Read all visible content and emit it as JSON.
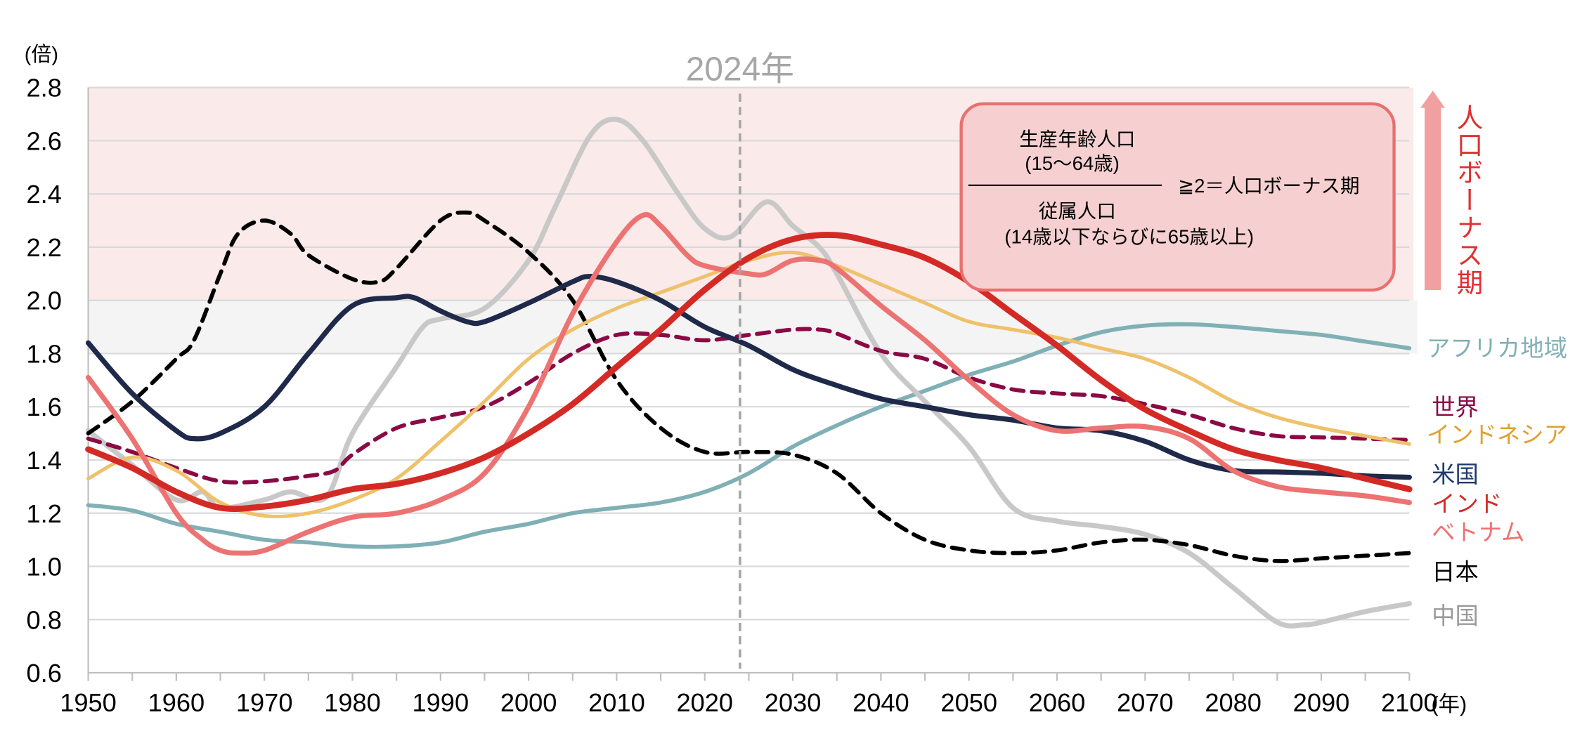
{
  "chart_data": {
    "type": "line",
    "ylabel": "(倍)",
    "xlabel_unit": "(年)",
    "xlim": [
      1950,
      2100
    ],
    "ylim": [
      0.6,
      2.8
    ],
    "x_ticks": [
      1950,
      1960,
      1970,
      1980,
      1990,
      2000,
      2010,
      2020,
      2030,
      2040,
      2050,
      2060,
      2070,
      2080,
      2090,
      2100
    ],
    "y_ticks": [
      "0.6",
      "0.8",
      "1.0",
      "1.2",
      "1.4",
      "1.6",
      "1.8",
      "2.0",
      "2.2",
      "2.4",
      "2.6",
      "2.8"
    ],
    "grid": true,
    "bonus_band": {
      "from": 2.0,
      "to": 2.8,
      "color": "#fbeaea"
    },
    "gray_band": {
      "from": 1.8,
      "to": 2.0,
      "color": "#f4f4f4"
    },
    "marker_year": {
      "year": 2024,
      "label": "2024年"
    },
    "annotation": {
      "numerator": "生産年齢人口",
      "numerator_sub": "(15〜64歳)",
      "denominator": "従属人口",
      "denominator_sub": "(14歳以下ならびに65歳以上)",
      "condition": "≧2＝人口ボーナス期"
    },
    "arrow_label": "人口ボーナス期",
    "series": [
      {
        "name": "アフリカ地域",
        "color": "#7fb0b5",
        "label_color": "#7fb0b5",
        "dashed": false,
        "width": 4,
        "x": [
          1950,
          1955,
          1960,
          1965,
          1970,
          1975,
          1980,
          1985,
          1990,
          1995,
          2000,
          2005,
          2010,
          2015,
          2020,
          2025,
          2030,
          2035,
          2040,
          2045,
          2050,
          2055,
          2060,
          2065,
          2070,
          2075,
          2080,
          2085,
          2090,
          2095,
          2100
        ],
        "y": [
          1.23,
          1.21,
          1.16,
          1.13,
          1.1,
          1.09,
          1.075,
          1.075,
          1.09,
          1.13,
          1.16,
          1.2,
          1.22,
          1.24,
          1.28,
          1.35,
          1.45,
          1.53,
          1.6,
          1.66,
          1.72,
          1.77,
          1.83,
          1.88,
          1.905,
          1.91,
          1.9,
          1.885,
          1.87,
          1.845,
          1.82
        ]
      },
      {
        "name": "中国",
        "color": "#c8c8c8",
        "label_color": "#9a9a9a",
        "dashed": false,
        "width": 5,
        "x": [
          1950,
          1955,
          1960,
          1963,
          1965,
          1970,
          1973,
          1977,
          1980,
          1985,
          1988,
          1990,
          1995,
          2000,
          2003,
          2007,
          2010,
          2013,
          2017,
          2020,
          2023,
          2027,
          2030,
          2033,
          2035,
          2040,
          2045,
          2050,
          2055,
          2060,
          2065,
          2070,
          2075,
          2080,
          2085,
          2088,
          2090,
          2095,
          2100
        ],
        "y": [
          1.51,
          1.38,
          1.25,
          1.28,
          1.22,
          1.25,
          1.28,
          1.26,
          1.5,
          1.75,
          1.9,
          1.93,
          1.97,
          2.15,
          2.35,
          2.62,
          2.68,
          2.6,
          2.4,
          2.27,
          2.24,
          2.37,
          2.28,
          2.2,
          2.1,
          1.8,
          1.62,
          1.45,
          1.22,
          1.17,
          1.15,
          1.12,
          1.05,
          0.92,
          0.79,
          0.78,
          0.79,
          0.83,
          0.86
        ]
      },
      {
        "name": "日本",
        "color": "#000000",
        "label_color": "#000000",
        "dashed": true,
        "width": 4,
        "x": [
          1950,
          1955,
          1960,
          1962,
          1965,
          1967,
          1970,
          1973,
          1975,
          1980,
          1983,
          1985,
          1990,
          1993,
          1995,
          2000,
          2005,
          2010,
          2015,
          2020,
          2025,
          2030,
          2035,
          2040,
          2045,
          2050,
          2055,
          2060,
          2065,
          2070,
          2075,
          2080,
          2085,
          2090,
          2095,
          2100
        ],
        "y": [
          1.5,
          1.62,
          1.78,
          1.85,
          2.1,
          2.25,
          2.3,
          2.25,
          2.17,
          2.08,
          2.07,
          2.12,
          2.3,
          2.33,
          2.3,
          2.18,
          2.0,
          1.7,
          1.52,
          1.43,
          1.43,
          1.42,
          1.35,
          1.2,
          1.1,
          1.06,
          1.05,
          1.06,
          1.09,
          1.1,
          1.08,
          1.04,
          1.02,
          1.03,
          1.04,
          1.05
        ]
      },
      {
        "name": "世界",
        "color": "#8b0a45",
        "label_color": "#8b0a45",
        "dashed": true,
        "width": 4,
        "x": [
          1950,
          1955,
          1960,
          1965,
          1970,
          1975,
          1978,
          1980,
          1985,
          1990,
          1995,
          2000,
          2005,
          2010,
          2015,
          2020,
          2025,
          2030,
          2033,
          2035,
          2040,
          2045,
          2050,
          2055,
          2060,
          2065,
          2070,
          2075,
          2080,
          2085,
          2090,
          2095,
          2100
        ],
        "y": [
          1.48,
          1.43,
          1.37,
          1.32,
          1.32,
          1.34,
          1.36,
          1.42,
          1.52,
          1.56,
          1.6,
          1.69,
          1.8,
          1.87,
          1.87,
          1.85,
          1.87,
          1.89,
          1.89,
          1.875,
          1.81,
          1.78,
          1.71,
          1.665,
          1.65,
          1.64,
          1.61,
          1.57,
          1.52,
          1.49,
          1.485,
          1.48,
          1.475
        ]
      },
      {
        "name": "インドネシア",
        "color": "#eec16a",
        "label_color": "#e0a030",
        "dashed": false,
        "width": 3.5,
        "x": [
          1950,
          1955,
          1960,
          1965,
          1970,
          1975,
          1980,
          1985,
          1990,
          1995,
          2000,
          2005,
          2010,
          2015,
          2020,
          2025,
          2030,
          2035,
          2040,
          2045,
          2050,
          2055,
          2060,
          2065,
          2070,
          2075,
          2080,
          2085,
          2090,
          2095,
          2100
        ],
        "y": [
          1.33,
          1.41,
          1.36,
          1.24,
          1.19,
          1.2,
          1.25,
          1.33,
          1.47,
          1.62,
          1.78,
          1.89,
          1.97,
          2.03,
          2.09,
          2.15,
          2.18,
          2.13,
          2.06,
          1.99,
          1.92,
          1.89,
          1.86,
          1.82,
          1.78,
          1.71,
          1.62,
          1.56,
          1.52,
          1.49,
          1.46
        ]
      },
      {
        "name": "米国",
        "color": "#1f2a4a",
        "label_color": "#1f3a6a",
        "dashed": false,
        "width": 5,
        "x": [
          1950,
          1955,
          1960,
          1962,
          1965,
          1970,
          1975,
          1980,
          1985,
          1987,
          1990,
          1993,
          1995,
          2000,
          2005,
          2007,
          2010,
          2015,
          2020,
          2025,
          2030,
          2035,
          2040,
          2045,
          2050,
          2055,
          2060,
          2065,
          2070,
          2075,
          2080,
          2085,
          2090,
          2095,
          2100
        ],
        "y": [
          1.84,
          1.65,
          1.51,
          1.48,
          1.5,
          1.6,
          1.8,
          1.98,
          2.01,
          2.01,
          1.96,
          1.92,
          1.92,
          1.99,
          2.07,
          2.09,
          2.07,
          2.0,
          1.9,
          1.83,
          1.74,
          1.68,
          1.63,
          1.6,
          1.57,
          1.55,
          1.52,
          1.51,
          1.47,
          1.4,
          1.36,
          1.355,
          1.35,
          1.34,
          1.335
        ]
      },
      {
        "name": "ベトナム",
        "color": "#ec7372",
        "label_color": "#ec7372",
        "dashed": false,
        "width": 5,
        "x": [
          1950,
          1955,
          1960,
          1963,
          1965,
          1967,
          1970,
          1975,
          1980,
          1985,
          1990,
          1995,
          2000,
          2005,
          2010,
          2013,
          2015,
          2018,
          2020,
          2025,
          2027,
          2030,
          2033,
          2035,
          2040,
          2045,
          2050,
          2055,
          2060,
          2065,
          2070,
          2075,
          2080,
          2085,
          2090,
          2095,
          2100
        ],
        "y": [
          1.71,
          1.48,
          1.2,
          1.1,
          1.06,
          1.05,
          1.06,
          1.13,
          1.185,
          1.2,
          1.25,
          1.35,
          1.6,
          1.95,
          2.22,
          2.32,
          2.28,
          2.17,
          2.13,
          2.1,
          2.1,
          2.15,
          2.15,
          2.12,
          1.98,
          1.85,
          1.7,
          1.57,
          1.51,
          1.52,
          1.525,
          1.48,
          1.36,
          1.3,
          1.28,
          1.265,
          1.24
        ]
      },
      {
        "name": "インド",
        "color": "#d42a26",
        "label_color": "#d42a26",
        "dashed": false,
        "width": 6,
        "x": [
          1950,
          1955,
          1960,
          1965,
          1970,
          1975,
          1980,
          1985,
          1990,
          1995,
          2000,
          2005,
          2010,
          2015,
          2020,
          2025,
          2030,
          2035,
          2040,
          2045,
          2050,
          2055,
          2060,
          2065,
          2070,
          2075,
          2080,
          2085,
          2090,
          2095,
          2100
        ],
        "y": [
          1.44,
          1.37,
          1.28,
          1.22,
          1.225,
          1.25,
          1.29,
          1.31,
          1.35,
          1.41,
          1.5,
          1.61,
          1.75,
          1.89,
          2.04,
          2.16,
          2.23,
          2.245,
          2.21,
          2.16,
          2.07,
          1.95,
          1.83,
          1.7,
          1.59,
          1.51,
          1.44,
          1.4,
          1.37,
          1.33,
          1.29
        ]
      }
    ],
    "legend_order": [
      "アフリカ地域",
      "世界",
      "インドネシア",
      "米国",
      "インド",
      "ベトナム",
      "日本",
      "中国"
    ]
  }
}
